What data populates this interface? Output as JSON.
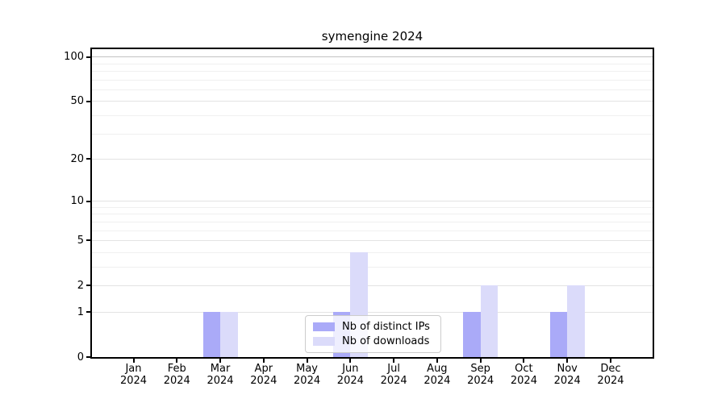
{
  "chart_data": {
    "type": "bar",
    "title": "symengine 2024",
    "xlabel": "",
    "ylabel": "",
    "months": [
      "Jan",
      "Feb",
      "Mar",
      "Apr",
      "May",
      "Jun",
      "Jul",
      "Aug",
      "Sep",
      "Oct",
      "Nov",
      "Dec"
    ],
    "year_label": "2024",
    "series": [
      {
        "name": "Nb of distinct IPs",
        "color": "#aaaaf8",
        "values": [
          0,
          0,
          1,
          0,
          0,
          1,
          0,
          0,
          1,
          0,
          1,
          0
        ]
      },
      {
        "name": "Nb of downloads",
        "color": "#dbdbfa",
        "values": [
          0,
          0,
          1,
          0,
          0,
          4,
          0,
          0,
          2,
          0,
          2,
          0
        ]
      }
    ],
    "yticks": [
      0,
      1,
      2,
      5,
      10,
      20,
      50,
      100
    ],
    "grid_minor_ticks": [
      3,
      4,
      6,
      7,
      8,
      9,
      30,
      40,
      60,
      70,
      80,
      90
    ],
    "scale": "log1p",
    "ylim": [
      0,
      113
    ],
    "grid": "on",
    "legend_position": "lower center",
    "colors": {
      "major_gridline": "#e3e3e3",
      "top_gridline": "#c3c3c3",
      "minor_gridline": "#f0f0f0",
      "axis": "#000000",
      "background": "#ffffff"
    }
  }
}
